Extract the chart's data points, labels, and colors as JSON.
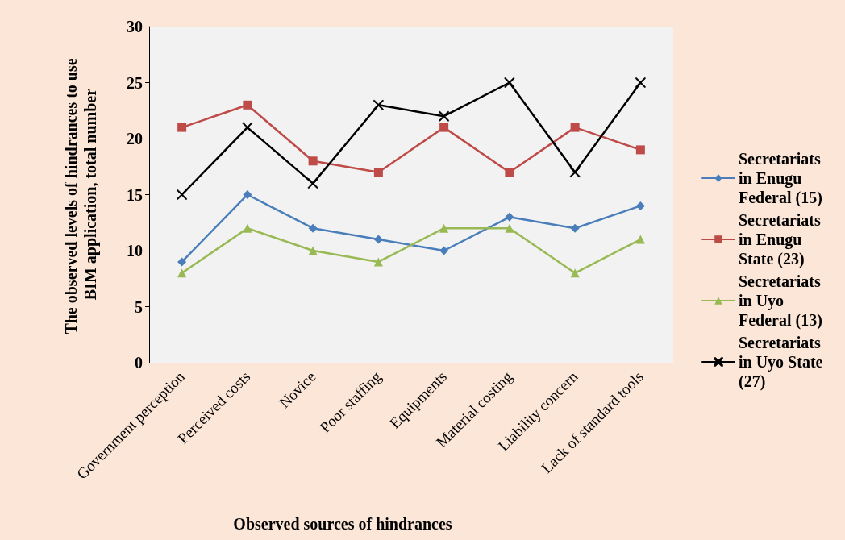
{
  "chart_data": {
    "type": "line",
    "xlabel": "Observed sources of hindrances",
    "ylabel": "The observed levels of hindrances to use BIM application, total number",
    "categories": [
      "Government perception",
      "Perceived costs",
      "Novice",
      "Poor staffing",
      "Equipments",
      "Material costing",
      "Liability concern",
      "Lack of standard tools"
    ],
    "series": [
      {
        "name": "Secretariats in Enugu Federal (15)",
        "color": "#4a7ebb",
        "marker": "diamond",
        "values": [
          9,
          15,
          12,
          11,
          10,
          13,
          12,
          14
        ]
      },
      {
        "name": "Secretariats in Enugu State (23)",
        "color": "#be4b48",
        "marker": "square",
        "values": [
          21,
          23,
          18,
          17,
          21,
          17,
          21,
          19
        ]
      },
      {
        "name": "Secretariats in Uyo Federal (13)",
        "color": "#98b954",
        "marker": "triangle",
        "values": [
          8,
          12,
          10,
          9,
          12,
          12,
          8,
          11
        ]
      },
      {
        "name": "Secretariats in Uyo State (27)",
        "color": "#000000",
        "marker": "cross",
        "values": [
          15,
          21,
          16,
          23,
          22,
          25,
          17,
          25
        ]
      }
    ],
    "ylim": [
      0,
      30
    ],
    "yticks": [
      0,
      5,
      10,
      15,
      20,
      25,
      30
    ],
    "grid": false,
    "legend": "right",
    "line_style": "solid"
  }
}
